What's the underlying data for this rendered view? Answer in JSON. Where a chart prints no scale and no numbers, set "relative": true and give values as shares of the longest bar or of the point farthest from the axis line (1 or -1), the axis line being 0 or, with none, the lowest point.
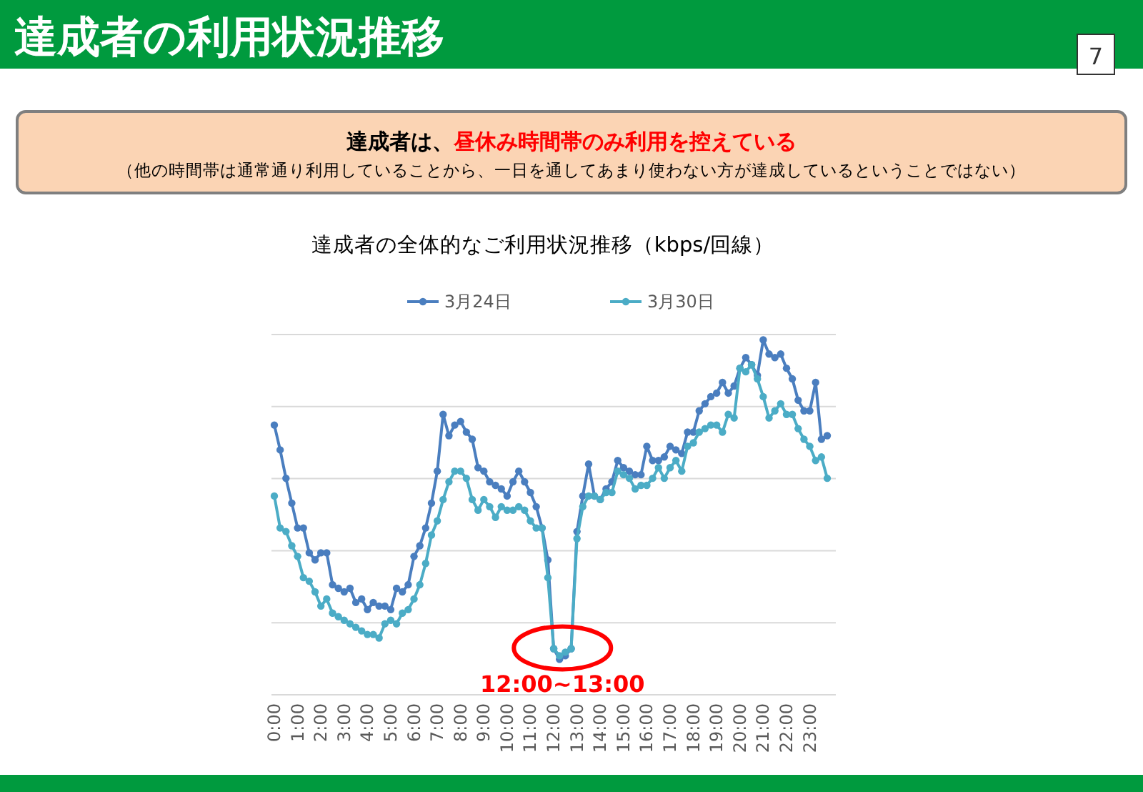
{
  "chart_data": {
    "type": "line",
    "title": "達成者の全体的なご利用状況推移（kbps/回線）",
    "relative": true,
    "grid": "y",
    "legend": "top",
    "marker": "circle",
    "line_style": "solid",
    "categories": [
      "0:00",
      null,
      null,
      null,
      "1:00",
      null,
      null,
      null,
      "2:00",
      null,
      null,
      null,
      "3:00",
      null,
      null,
      null,
      "4:00",
      null,
      null,
      null,
      "5:00",
      null,
      null,
      null,
      "6:00",
      null,
      null,
      null,
      "7:00",
      null,
      null,
      null,
      "8:00",
      null,
      null,
      null,
      "9:00",
      null,
      null,
      null,
      "10:00",
      null,
      null,
      null,
      "11:00",
      null,
      null,
      null,
      "12:00",
      null,
      null,
      null,
      "13:00",
      null,
      null,
      null,
      "14:00",
      null,
      null,
      null,
      "15:00",
      null,
      null,
      null,
      "16:00",
      null,
      null,
      null,
      "17:00",
      null,
      null,
      null,
      "18:00",
      null,
      null,
      null,
      "19:00",
      null,
      null,
      null,
      "20:00",
      null,
      null,
      null,
      "21:00",
      null,
      null,
      null,
      "22:00",
      null,
      null,
      null,
      "23:00",
      null,
      null,
      null
    ],
    "series": [
      {
        "name": "3月24日",
        "color": "#4a7ebf",
        "values": [
          0.76,
          0.69,
          0.61,
          0.54,
          0.47,
          0.47,
          0.4,
          0.38,
          0.4,
          0.4,
          0.31,
          0.3,
          0.29,
          0.3,
          0.26,
          0.27,
          0.24,
          0.26,
          0.25,
          0.25,
          0.24,
          0.3,
          0.29,
          0.31,
          0.39,
          0.42,
          0.47,
          0.54,
          0.63,
          0.79,
          0.73,
          0.76,
          0.77,
          0.74,
          0.72,
          0.64,
          0.63,
          0.6,
          0.59,
          0.58,
          0.56,
          0.6,
          0.63,
          0.6,
          0.57,
          0.53,
          0.47,
          0.38,
          0.13,
          0.1,
          0.11,
          0.13,
          0.46,
          0.56,
          0.65,
          0.56,
          0.55,
          0.58,
          0.6,
          0.66,
          0.64,
          0.63,
          0.62,
          0.62,
          0.7,
          0.66,
          0.66,
          0.67,
          0.7,
          0.69,
          0.68,
          0.74,
          0.74,
          0.8,
          0.82,
          0.84,
          0.85,
          0.88,
          0.85,
          0.87,
          0.92,
          0.95,
          0.93,
          0.9,
          1.0,
          0.96,
          0.95,
          0.96,
          0.92,
          0.89,
          0.83,
          0.8,
          0.8,
          0.88,
          0.72,
          0.73
        ]
      },
      {
        "name": "3月30日",
        "color": "#4bacc6",
        "values": [
          0.56,
          0.47,
          0.46,
          0.42,
          0.39,
          0.33,
          0.32,
          0.29,
          0.25,
          0.27,
          0.23,
          0.22,
          0.21,
          0.2,
          0.19,
          0.18,
          0.17,
          0.17,
          0.16,
          0.2,
          0.21,
          0.2,
          0.23,
          0.24,
          0.27,
          0.31,
          0.37,
          0.45,
          0.49,
          0.55,
          0.6,
          0.63,
          0.63,
          0.61,
          0.55,
          0.52,
          0.55,
          0.53,
          0.5,
          0.53,
          0.52,
          0.52,
          0.53,
          0.52,
          0.49,
          0.47,
          0.47,
          0.33,
          0.13,
          0.11,
          0.12,
          0.13,
          0.44,
          0.53,
          0.56,
          0.56,
          0.55,
          0.57,
          0.57,
          0.63,
          0.62,
          0.61,
          0.58,
          0.59,
          0.59,
          0.61,
          0.64,
          0.61,
          0.64,
          0.66,
          0.63,
          0.7,
          0.71,
          0.74,
          0.75,
          0.76,
          0.76,
          0.74,
          0.79,
          0.78,
          0.92,
          0.91,
          0.93,
          0.89,
          0.84,
          0.78,
          0.8,
          0.82,
          0.79,
          0.79,
          0.75,
          0.72,
          0.7,
          0.66,
          0.67,
          0.61
        ]
      }
    ],
    "annotations": [
      "達成者の利用状況推移",
      "7",
      "達成者は、",
      "昼休み時間帯のみ利用を控えている",
      "（他の時間帯は通常通り利用していることから、一日を通してあまり使わない方が達成しているということではない）",
      {
        "text": "12:00~13:00",
        "x": "12:00",
        "y": 0.12
      }
    ]
  }
}
